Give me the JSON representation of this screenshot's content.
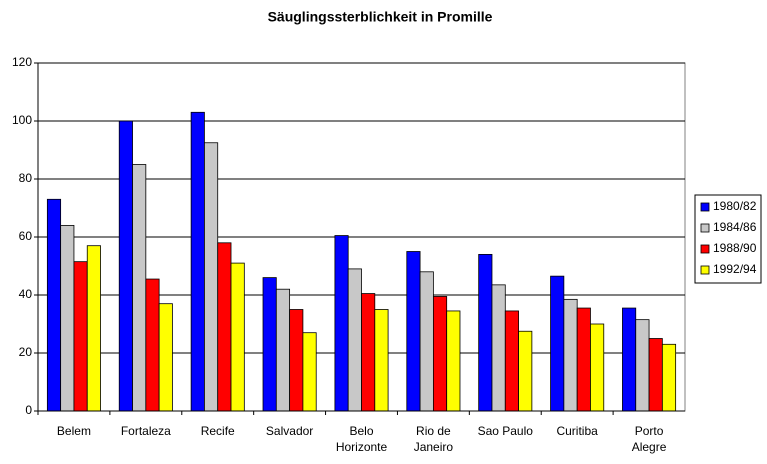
{
  "chart_data": {
    "type": "bar",
    "title": "Säuglingssterblichkeit in Promille",
    "categories": [
      "Belem",
      "Fortaleza",
      "Recife",
      "Salvador",
      "Belo Horizonte",
      "Rio de Janeiro",
      "Sao Paulo",
      "Curitiba",
      "Porto Alegre"
    ],
    "series": [
      {
        "name": "1980/82",
        "color": "#0000ff",
        "values": [
          73,
          100,
          103,
          46,
          60.5,
          55,
          54,
          46.5,
          35.5
        ]
      },
      {
        "name": "1984/86",
        "color": "#c8c8c8",
        "values": [
          64,
          85,
          92.5,
          42,
          49,
          48,
          43.5,
          38.5,
          31.5
        ]
      },
      {
        "name": "1988/90",
        "color": "#ff0000",
        "values": [
          51.5,
          45.5,
          58,
          35,
          40.5,
          39.5,
          34.5,
          35.5,
          25
        ]
      },
      {
        "name": "1992/94",
        "color": "#ffff00",
        "values": [
          57,
          37,
          51,
          27,
          35,
          34.5,
          27.5,
          30,
          23
        ]
      }
    ],
    "ylim": [
      0,
      120
    ],
    "yticks": [
      0,
      20,
      40,
      60,
      80,
      100,
      120
    ],
    "grid": true,
    "legend": "right"
  }
}
